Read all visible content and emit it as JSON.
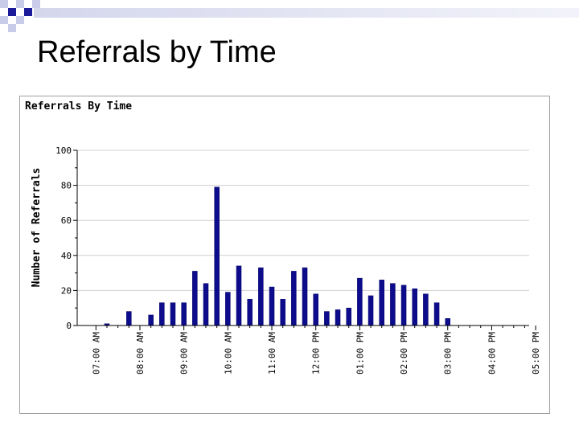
{
  "slide": {
    "title": "Referrals by Time"
  },
  "chart_data": {
    "type": "bar",
    "title": "Referrals By Time",
    "xlabel": "",
    "ylabel": "Number of Referrals",
    "ylim": [
      0,
      100
    ],
    "yticks": [
      0,
      20,
      40,
      60,
      80,
      100
    ],
    "xtick_labels": [
      "07:00 AM",
      "08:00 AM",
      "09:00 AM",
      "10:00 AM",
      "11:00 AM",
      "12:00 PM",
      "01:00 PM",
      "02:00 PM",
      "03:00 PM",
      "04:00 PM",
      "05:00 PM"
    ],
    "bar_color": "#0c0c8c",
    "grid": true,
    "series": [
      {
        "values": [
          0,
          1,
          0,
          8,
          0,
          6,
          13,
          13,
          13,
          31,
          24,
          79,
          19,
          34,
          15,
          33,
          22,
          15,
          31,
          33,
          18,
          8,
          9,
          10,
          27,
          17,
          26,
          24,
          23,
          21,
          18,
          13,
          4,
          0,
          0,
          0,
          0,
          0,
          0,
          0,
          0
        ]
      }
    ]
  }
}
